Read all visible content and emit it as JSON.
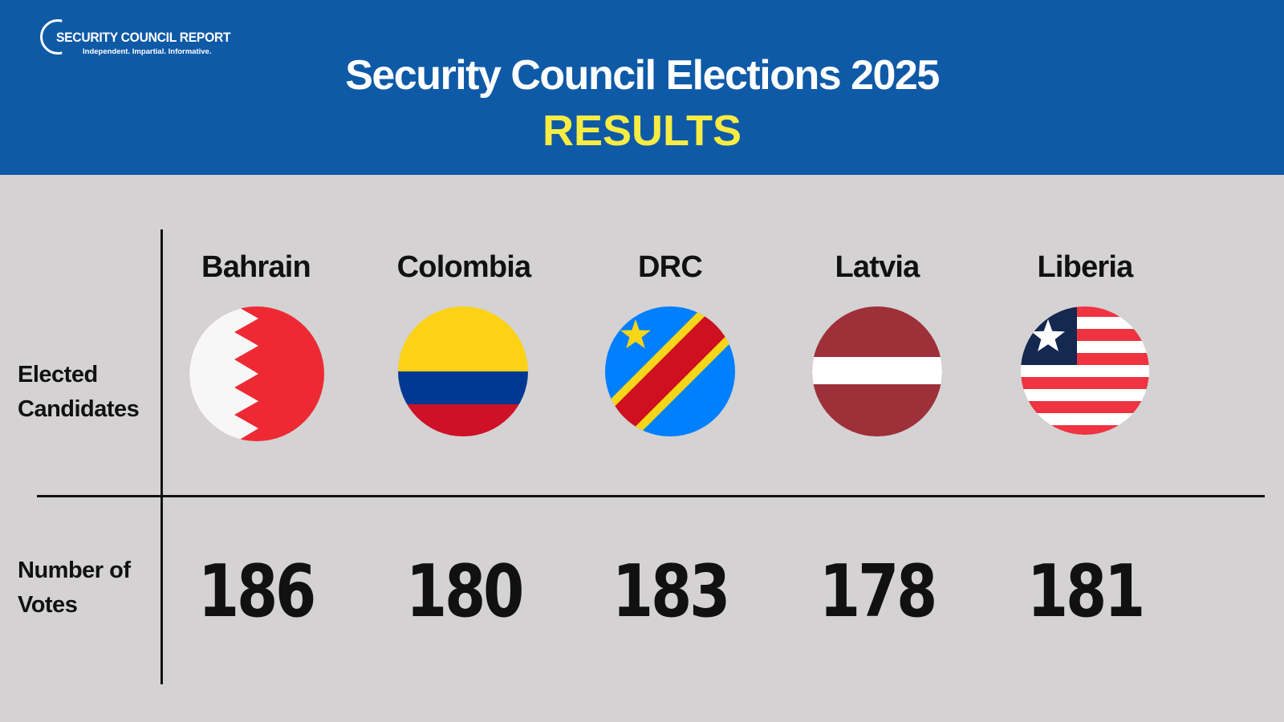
{
  "header": {
    "logo_name": "SECURITY COUNCIL REPORT",
    "logo_tagline": "Independent. Impartial. Informative.",
    "title": "Security Council Elections 2025",
    "subtitle": "RESULTS"
  },
  "rows": {
    "candidates_label_line1": "Elected",
    "candidates_label_line2": "Candidates",
    "votes_label_line1": "Number of",
    "votes_label_line2": "Votes"
  },
  "candidates": [
    {
      "name": "Bahrain",
      "votes": "186",
      "flag": "bahrain-flag"
    },
    {
      "name": "Colombia",
      "votes": "180",
      "flag": "colombia-flag"
    },
    {
      "name": "DRC",
      "votes": "183",
      "flag": "drc-flag"
    },
    {
      "name": "Latvia",
      "votes": "178",
      "flag": "latvia-flag"
    },
    {
      "name": "Liberia",
      "votes": "181",
      "flag": "liberia-flag"
    }
  ],
  "colors": {
    "header_bg": "#0f5aa7",
    "subtitle": "#f8ec43",
    "page_bg": "#d4d2d3"
  }
}
